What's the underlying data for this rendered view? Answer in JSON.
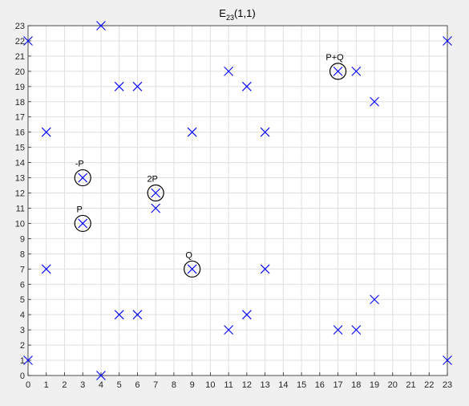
{
  "chart_data": {
    "type": "scatter",
    "title": {
      "base": "E",
      "subscript": "23",
      "suffix": "(1,1)"
    },
    "xlabel": "",
    "ylabel": "",
    "xlim": [
      0,
      23
    ],
    "ylim": [
      0,
      23
    ],
    "xticks": [
      0,
      1,
      2,
      3,
      4,
      5,
      6,
      7,
      8,
      9,
      10,
      11,
      12,
      13,
      14,
      15,
      16,
      17,
      18,
      19,
      20,
      21,
      22,
      23
    ],
    "yticks": [
      0,
      1,
      2,
      3,
      4,
      5,
      6,
      7,
      8,
      9,
      10,
      11,
      12,
      13,
      14,
      15,
      16,
      17,
      18,
      19,
      20,
      21,
      22,
      23
    ],
    "grid": true,
    "marker": "x",
    "marker_color": "#0000ff",
    "points": [
      [
        0,
        1
      ],
      [
        0,
        22
      ],
      [
        1,
        7
      ],
      [
        1,
        16
      ],
      [
        3,
        10
      ],
      [
        3,
        13
      ],
      [
        4,
        0
      ],
      [
        4,
        23
      ],
      [
        5,
        4
      ],
      [
        5,
        19
      ],
      [
        6,
        4
      ],
      [
        6,
        19
      ],
      [
        7,
        11
      ],
      [
        7,
        12
      ],
      [
        9,
        7
      ],
      [
        9,
        16
      ],
      [
        11,
        3
      ],
      [
        11,
        20
      ],
      [
        12,
        4
      ],
      [
        12,
        19
      ],
      [
        13,
        7
      ],
      [
        13,
        16
      ],
      [
        17,
        3
      ],
      [
        17,
        20
      ],
      [
        18,
        3
      ],
      [
        18,
        20
      ],
      [
        19,
        5
      ],
      [
        19,
        18
      ],
      [
        23,
        1
      ],
      [
        23,
        22
      ]
    ],
    "annotations": [
      {
        "label": "P",
        "x": 3,
        "y": 10
      },
      {
        "label": "-P",
        "x": 3,
        "y": 13
      },
      {
        "label": "2P",
        "x": 7,
        "y": 12
      },
      {
        "label": "Q",
        "x": 9,
        "y": 7
      },
      {
        "label": "P+Q",
        "x": 17,
        "y": 20
      }
    ]
  }
}
